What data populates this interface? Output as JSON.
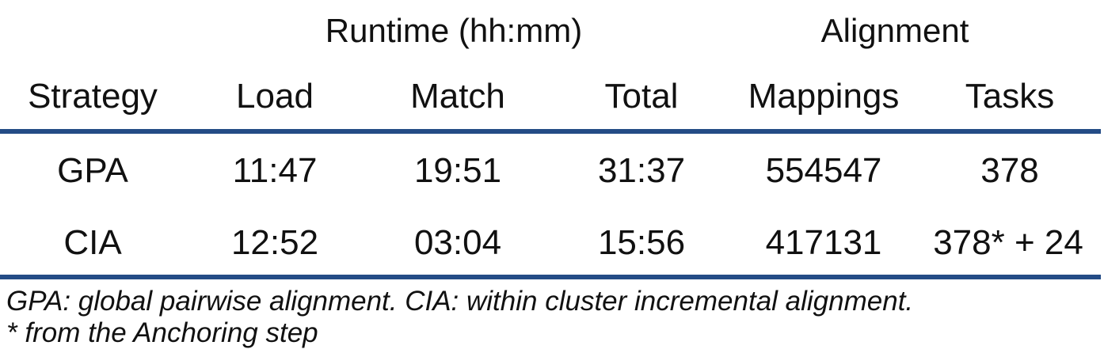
{
  "table": {
    "group_headers": {
      "runtime": "Runtime (hh:mm)",
      "alignment": "Alignment"
    },
    "columns": [
      "Strategy",
      "Load",
      "Match",
      "Total",
      "Mappings",
      "Tasks"
    ],
    "rows": [
      [
        "GPA",
        "11:47",
        "19:51",
        "31:37",
        "554547",
        "378"
      ],
      [
        "CIA",
        "12:52",
        "03:04",
        "15:56",
        "417131",
        "378* + 24"
      ]
    ],
    "rule_color": "#244c86"
  },
  "notes": [
    "GPA: global pairwise alignment. CIA: within cluster incremental alignment.",
    "* from the Anchoring step"
  ]
}
